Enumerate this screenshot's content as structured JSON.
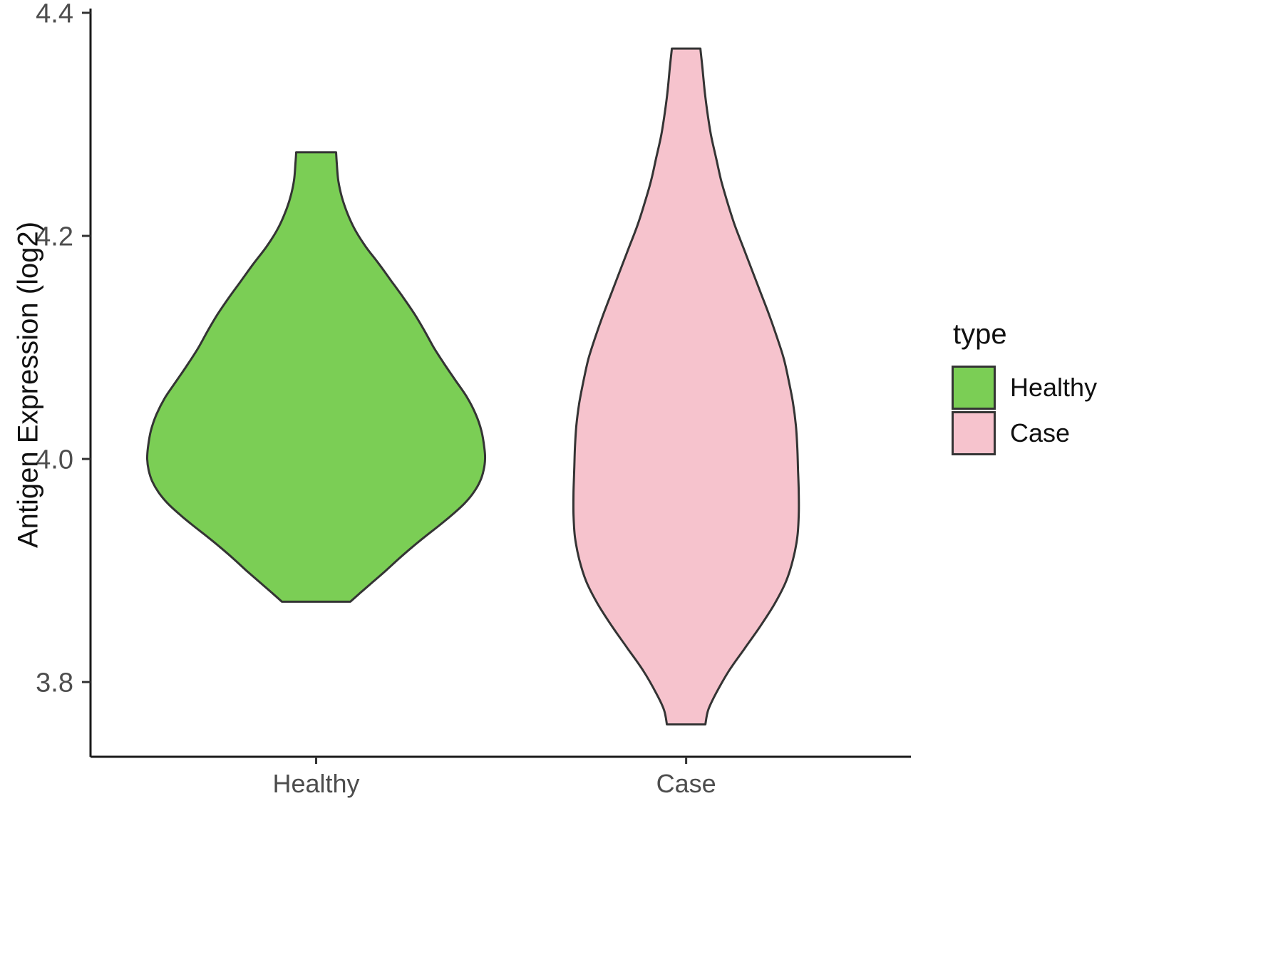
{
  "figure": {
    "background": "#ffffff"
  },
  "chart_data": {
    "type": "violin",
    "title": "",
    "xlabel": "",
    "ylabel": "Antigen Expression (log2)",
    "categories": [
      "Healthy",
      "Case"
    ],
    "ylim": [
      3.733,
      4.4
    ],
    "yticks": [
      3.8,
      4.0,
      4.2,
      4.4
    ],
    "ytick_labels": [
      "3.8",
      "4.0",
      "4.2",
      "4.4"
    ],
    "grid": false,
    "legend_position": "right",
    "legend": {
      "title": "type",
      "entries": [
        {
          "label": "Healthy",
          "color": "#7BCE55"
        },
        {
          "label": "Case",
          "color": "#F6C3CD"
        }
      ]
    },
    "style": {
      "violin_stroke": "#343434",
      "axis_color": "#1a1a1a",
      "tick_color": "#333333",
      "tick_label_color": "#4d4d4d"
    },
    "series": [
      {
        "name": "Healthy",
        "fill": "#7BCE55",
        "profile": [
          [
            4.275,
            28
          ],
          [
            4.265,
            29
          ],
          [
            4.25,
            31
          ],
          [
            4.235,
            36
          ],
          [
            4.22,
            44
          ],
          [
            4.205,
            55
          ],
          [
            4.19,
            70
          ],
          [
            4.175,
            88
          ],
          [
            4.16,
            105
          ],
          [
            4.145,
            122
          ],
          [
            4.13,
            138
          ],
          [
            4.115,
            152
          ],
          [
            4.1,
            165
          ],
          [
            4.085,
            180
          ],
          [
            4.07,
            196
          ],
          [
            4.055,
            212
          ],
          [
            4.04,
            224
          ],
          [
            4.025,
            232
          ],
          [
            4.01,
            236
          ],
          [
            4.0,
            237
          ],
          [
            3.99,
            235
          ],
          [
            3.98,
            230
          ],
          [
            3.97,
            221
          ],
          [
            3.96,
            208
          ],
          [
            3.95,
            191
          ],
          [
            3.94,
            172
          ],
          [
            3.93,
            152
          ],
          [
            3.92,
            133
          ],
          [
            3.91,
            115
          ],
          [
            3.9,
            98
          ],
          [
            3.89,
            80
          ],
          [
            3.88,
            62
          ],
          [
            3.872,
            48
          ]
        ]
      },
      {
        "name": "Case",
        "fill": "#F6C3CD",
        "profile": [
          [
            4.368,
            20
          ],
          [
            4.35,
            23
          ],
          [
            4.33,
            26
          ],
          [
            4.31,
            30
          ],
          [
            4.29,
            35
          ],
          [
            4.27,
            42
          ],
          [
            4.25,
            49
          ],
          [
            4.23,
            58
          ],
          [
            4.21,
            68
          ],
          [
            4.19,
            80
          ],
          [
            4.17,
            92
          ],
          [
            4.15,
            104
          ],
          [
            4.13,
            116
          ],
          [
            4.11,
            127
          ],
          [
            4.09,
            137
          ],
          [
            4.07,
            144
          ],
          [
            4.05,
            150
          ],
          [
            4.03,
            154
          ],
          [
            4.01,
            156
          ],
          [
            3.99,
            157
          ],
          [
            3.97,
            158
          ],
          [
            3.95,
            158
          ],
          [
            3.93,
            156
          ],
          [
            3.91,
            150
          ],
          [
            3.89,
            140
          ],
          [
            3.87,
            124
          ],
          [
            3.85,
            104
          ],
          [
            3.83,
            82
          ],
          [
            3.81,
            60
          ],
          [
            3.79,
            42
          ],
          [
            3.775,
            31
          ],
          [
            3.762,
            27
          ]
        ]
      }
    ]
  }
}
